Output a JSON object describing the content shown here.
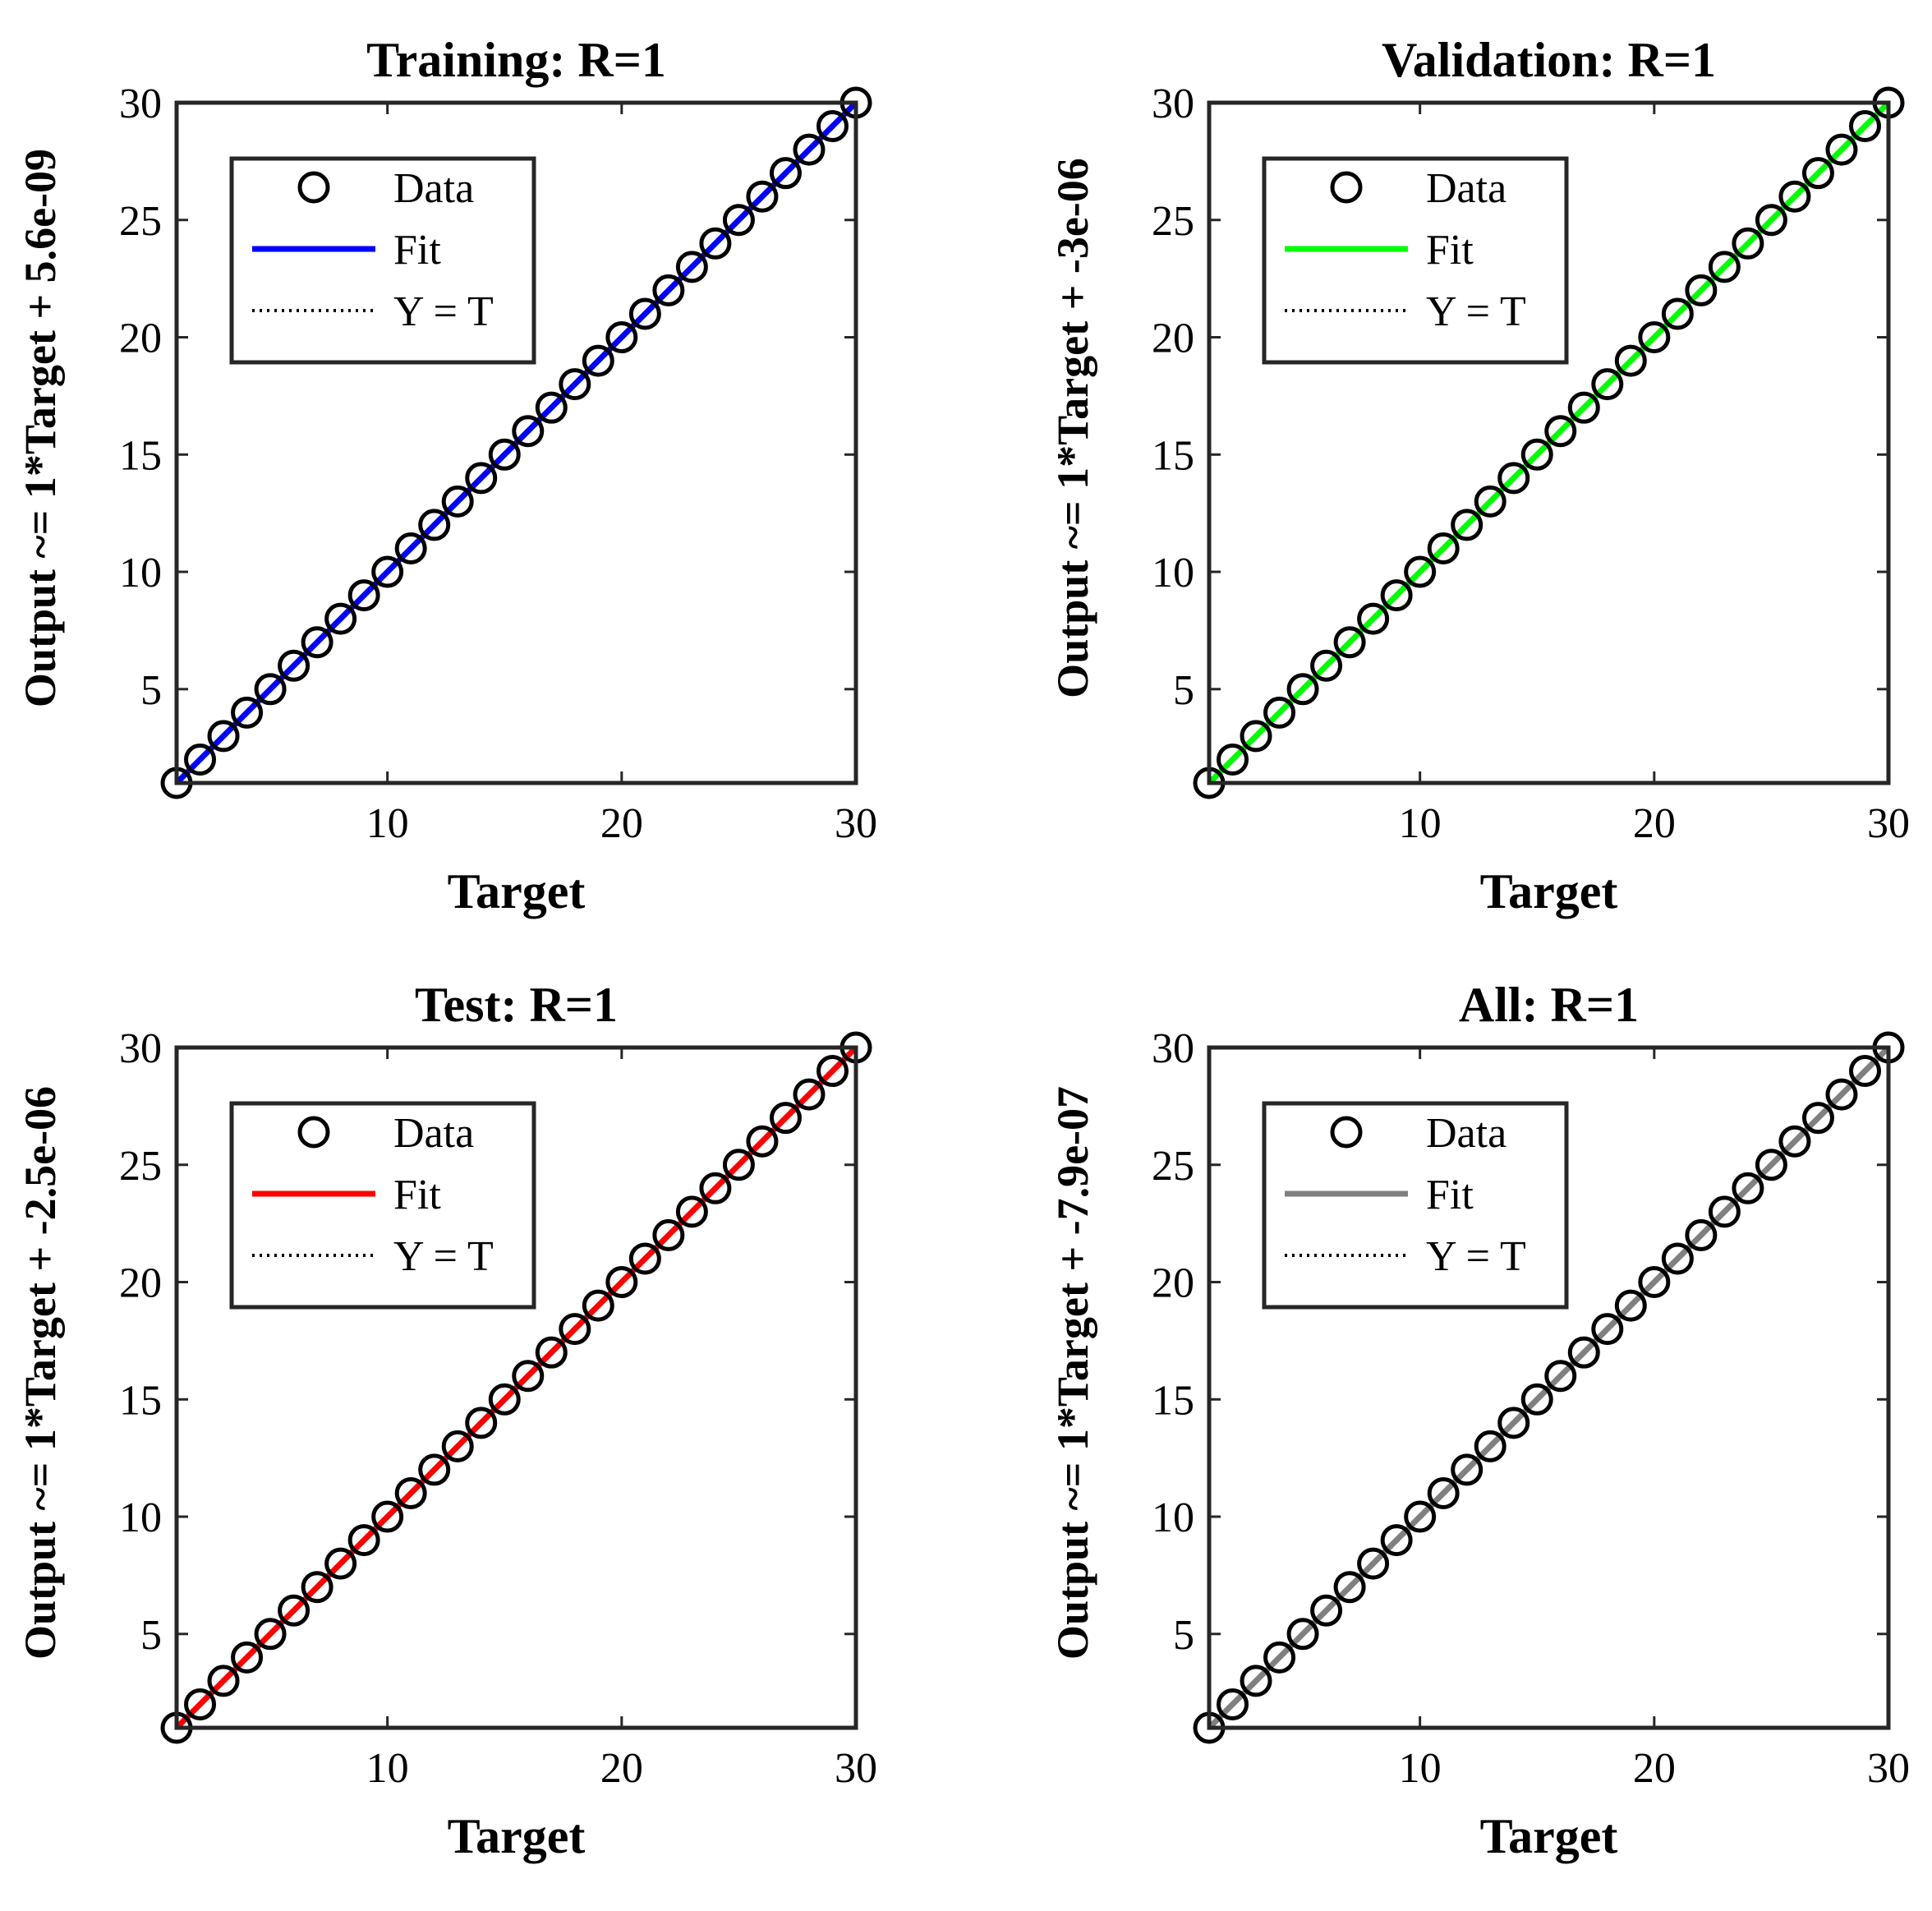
{
  "chart_data": [
    {
      "type": "scatter",
      "title": "Training: R=1",
      "xlabel": "Target",
      "ylabel": "Output ~= 1*Target + 5.6e-09",
      "xlim": [
        1,
        30
      ],
      "ylim": [
        1,
        30
      ],
      "xticks": [
        10,
        20,
        30
      ],
      "yticks": [
        5,
        10,
        15,
        20,
        25,
        30
      ],
      "fit_color": "#0000ff",
      "legend": [
        "Data",
        "Fit",
        "Y = T"
      ],
      "legend_location": "top-left",
      "x": [
        1,
        2,
        3,
        4,
        5,
        6,
        7,
        8,
        9,
        10,
        11,
        12,
        13,
        14,
        15,
        16,
        17,
        18,
        19,
        20,
        21,
        22,
        23,
        24,
        25,
        26,
        27,
        28,
        29,
        30
      ],
      "y": [
        1,
        2,
        3,
        4,
        5,
        6,
        7,
        8,
        9,
        10,
        11,
        12,
        13,
        14,
        15,
        16,
        17,
        18,
        19,
        20,
        21,
        22,
        23,
        24,
        25,
        26,
        27,
        28,
        29,
        30
      ]
    },
    {
      "type": "scatter",
      "title": "Validation: R=1",
      "xlabel": "Target",
      "ylabel": "Output ~= 1*Target + -3e-06",
      "xlim": [
        1,
        30
      ],
      "ylim": [
        1,
        30
      ],
      "xticks": [
        10,
        20,
        30
      ],
      "yticks": [
        5,
        10,
        15,
        20,
        25,
        30
      ],
      "fit_color": "#00ff00",
      "legend": [
        "Data",
        "Fit",
        "Y = T"
      ],
      "legend_location": "top-left",
      "x": [
        1,
        2,
        3,
        4,
        5,
        6,
        7,
        8,
        9,
        10,
        11,
        12,
        13,
        14,
        15,
        16,
        17,
        18,
        19,
        20,
        21,
        22,
        23,
        24,
        25,
        26,
        27,
        28,
        29,
        30
      ],
      "y": [
        1,
        2,
        3,
        4,
        5,
        6,
        7,
        8,
        9,
        10,
        11,
        12,
        13,
        14,
        15,
        16,
        17,
        18,
        19,
        20,
        21,
        22,
        23,
        24,
        25,
        26,
        27,
        28,
        29,
        30
      ]
    },
    {
      "type": "scatter",
      "title": "Test: R=1",
      "xlabel": "Target",
      "ylabel": "Output ~= 1*Target + -2.5e-06",
      "xlim": [
        1,
        30
      ],
      "ylim": [
        1,
        30
      ],
      "xticks": [
        10,
        20,
        30
      ],
      "yticks": [
        5,
        10,
        15,
        20,
        25,
        30
      ],
      "fit_color": "#ff0000",
      "legend": [
        "Data",
        "Fit",
        "Y = T"
      ],
      "legend_location": "top-left",
      "x": [
        1,
        2,
        3,
        4,
        5,
        6,
        7,
        8,
        9,
        10,
        11,
        12,
        13,
        14,
        15,
        16,
        17,
        18,
        19,
        20,
        21,
        22,
        23,
        24,
        25,
        26,
        27,
        28,
        29,
        30
      ],
      "y": [
        1,
        2,
        3,
        4,
        5,
        6,
        7,
        8,
        9,
        10,
        11,
        12,
        13,
        14,
        15,
        16,
        17,
        18,
        19,
        20,
        21,
        22,
        23,
        24,
        25,
        26,
        27,
        28,
        29,
        30
      ]
    },
    {
      "type": "scatter",
      "title": "All: R=1",
      "xlabel": "Target",
      "ylabel": "Output ~= 1*Target + -7.9e-07",
      "xlim": [
        1,
        30
      ],
      "ylim": [
        1,
        30
      ],
      "xticks": [
        10,
        20,
        30
      ],
      "yticks": [
        5,
        10,
        15,
        20,
        25,
        30
      ],
      "fit_color": "#808080",
      "legend": [
        "Data",
        "Fit",
        "Y = T"
      ],
      "legend_location": "top-left",
      "x": [
        1,
        2,
        3,
        4,
        5,
        6,
        7,
        8,
        9,
        10,
        11,
        12,
        13,
        14,
        15,
        16,
        17,
        18,
        19,
        20,
        21,
        22,
        23,
        24,
        25,
        26,
        27,
        28,
        29,
        30
      ],
      "y": [
        1,
        2,
        3,
        4,
        5,
        6,
        7,
        8,
        9,
        10,
        11,
        12,
        13,
        14,
        15,
        16,
        17,
        18,
        19,
        20,
        21,
        22,
        23,
        24,
        25,
        26,
        27,
        28,
        29,
        30
      ]
    }
  ]
}
